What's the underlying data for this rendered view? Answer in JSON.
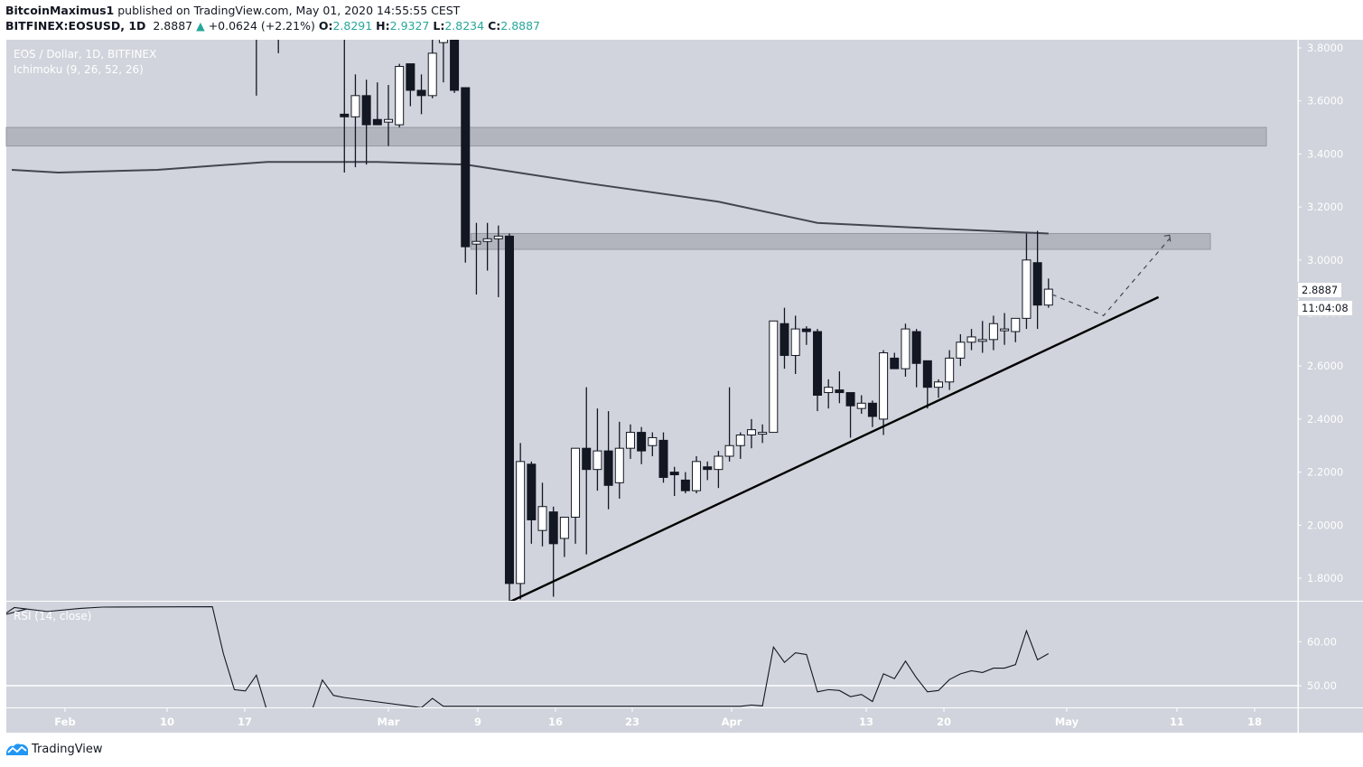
{
  "header": {
    "author": "BitcoinMaximus1",
    "published_text": "published on TradingView.com, May 01, 2020 14:55:55 CEST",
    "symbol": "BITFINEX:EOSUSD, 1D",
    "last": "2.8887",
    "change_arrow": "▲",
    "change": "+0.0624 (+2.21%)",
    "o_label": "O:",
    "o": "2.8291",
    "h_label": "H:",
    "h": "2.9327",
    "l_label": "L:",
    "l": "2.8234",
    "c_label": "C:",
    "c": "2.8887"
  },
  "legend": {
    "series_title": "EOS / Dollar, 1D, BITFINEX",
    "indicator": "Ichimoku (9, 26, 52, 26)",
    "rsi_title": "RSI (14, close)"
  },
  "price_tag": {
    "price": "2.8887",
    "countdown": "11:04:08"
  },
  "branding": {
    "name": "TradingView"
  },
  "colors": {
    "background": "#d1d4dc",
    "candle_up_body": "#ffffff",
    "candle_down_body": "#131722",
    "wick": "#131722",
    "zone_fill": "#b2b5be",
    "zone_border": "#9598a1",
    "ma_line": "#434651",
    "trendline": "#000000",
    "axis_text": "#ffffff",
    "positive": "#26a69a",
    "brand_blue": "#2196f3"
  },
  "chart_data": {
    "type": "candlestick",
    "title": "EOS / Dollar, 1D, BITFINEX",
    "xlabel": "",
    "ylabel": "",
    "ylim": [
      1.72,
      3.84
    ],
    "y_ticks": [
      "3.8000",
      "3.6000",
      "3.4000",
      "3.2000",
      "3.0000",
      "2.8000",
      "2.6000",
      "2.4000",
      "2.2000",
      "2.0000",
      "1.8000"
    ],
    "x_ticks": [
      "Feb",
      "10",
      "17",
      "Mar",
      "9",
      "16",
      "23",
      "Apr",
      "13",
      "20",
      "May",
      "11",
      "18"
    ],
    "grid": false,
    "candles_visible_from": "2020-02-28",
    "candles": [
      {
        "date": "2020-02-27",
        "o": 3.55,
        "h": 3.9,
        "l": 3.33,
        "c": 3.54
      },
      {
        "date": "2020-02-28",
        "o": 3.54,
        "h": 3.7,
        "l": 3.35,
        "c": 3.62
      },
      {
        "date": "2020-02-29",
        "o": 3.62,
        "h": 3.68,
        "l": 3.36,
        "c": 3.51
      },
      {
        "date": "2020-03-01",
        "o": 3.53,
        "h": 3.67,
        "l": 3.51,
        "c": 3.51
      },
      {
        "date": "2020-03-02",
        "o": 3.52,
        "h": 3.66,
        "l": 3.43,
        "c": 3.53
      },
      {
        "date": "2020-03-03",
        "o": 3.51,
        "h": 3.74,
        "l": 3.5,
        "c": 3.73
      },
      {
        "date": "2020-03-04",
        "o": 3.74,
        "h": 3.74,
        "l": 3.58,
        "c": 3.64
      },
      {
        "date": "2020-03-05",
        "o": 3.64,
        "h": 3.7,
        "l": 3.55,
        "c": 3.62
      },
      {
        "date": "2020-03-06",
        "o": 3.62,
        "h": 3.85,
        "l": 3.61,
        "c": 3.78
      },
      {
        "date": "2020-03-07",
        "o": 3.82,
        "h": 3.9,
        "l": 3.67,
        "c": 3.86
      },
      {
        "date": "2020-03-08",
        "o": 3.86,
        "h": 3.88,
        "l": 3.63,
        "c": 3.64
      },
      {
        "date": "2020-03-09",
        "o": 3.65,
        "h": 3.65,
        "l": 2.99,
        "c": 3.05
      },
      {
        "date": "2020-03-10",
        "o": 3.06,
        "h": 3.14,
        "l": 2.87,
        "c": 3.07
      },
      {
        "date": "2020-03-11",
        "o": 3.07,
        "h": 3.14,
        "l": 2.96,
        "c": 3.08
      },
      {
        "date": "2020-03-12",
        "o": 3.08,
        "h": 3.13,
        "l": 2.86,
        "c": 3.09
      },
      {
        "date": "2020-03-13",
        "o": 3.09,
        "h": 3.1,
        "l": 1.66,
        "c": 1.78
      },
      {
        "date": "2020-03-14",
        "o": 1.78,
        "h": 2.31,
        "l": 1.72,
        "c": 2.24
      },
      {
        "date": "2020-03-15",
        "o": 2.23,
        "h": 2.24,
        "l": 1.93,
        "c": 2.02
      },
      {
        "date": "2020-03-16",
        "o": 1.98,
        "h": 2.16,
        "l": 1.92,
        "c": 2.07
      },
      {
        "date": "2020-03-17",
        "o": 2.05,
        "h": 2.07,
        "l": 1.73,
        "c": 1.93
      },
      {
        "date": "2020-03-18",
        "o": 1.95,
        "h": 2.02,
        "l": 1.88,
        "c": 2.03
      },
      {
        "date": "2020-03-19",
        "o": 2.03,
        "h": 2.05,
        "l": 1.93,
        "c": 2.29
      },
      {
        "date": "2020-03-20",
        "o": 2.29,
        "h": 2.52,
        "l": 1.89,
        "c": 2.21
      },
      {
        "date": "2020-03-21",
        "o": 2.21,
        "h": 2.44,
        "l": 2.13,
        "c": 2.28
      },
      {
        "date": "2020-03-22",
        "o": 2.28,
        "h": 2.43,
        "l": 2.06,
        "c": 2.15
      },
      {
        "date": "2020-03-23",
        "o": 2.16,
        "h": 2.39,
        "l": 2.1,
        "c": 2.29
      },
      {
        "date": "2020-03-24",
        "o": 2.29,
        "h": 2.38,
        "l": 2.25,
        "c": 2.35
      },
      {
        "date": "2020-03-25",
        "o": 2.35,
        "h": 2.37,
        "l": 2.23,
        "c": 2.28
      },
      {
        "date": "2020-03-26",
        "o": 2.3,
        "h": 2.35,
        "l": 2.26,
        "c": 2.33
      },
      {
        "date": "2020-03-27",
        "o": 2.32,
        "h": 2.35,
        "l": 2.16,
        "c": 2.18
      },
      {
        "date": "2020-03-28",
        "o": 2.2,
        "h": 2.22,
        "l": 2.11,
        "c": 2.19
      },
      {
        "date": "2020-03-29",
        "o": 2.17,
        "h": 2.2,
        "l": 2.12,
        "c": 2.13
      },
      {
        "date": "2020-03-30",
        "o": 2.13,
        "h": 2.26,
        "l": 2.12,
        "c": 2.24
      },
      {
        "date": "2020-03-31",
        "o": 2.22,
        "h": 2.24,
        "l": 2.17,
        "c": 2.21
      },
      {
        "date": "2020-04-01",
        "o": 2.21,
        "h": 2.28,
        "l": 2.14,
        "c": 2.26
      },
      {
        "date": "2020-04-02",
        "o": 2.26,
        "h": 2.52,
        "l": 2.24,
        "c": 2.3
      },
      {
        "date": "2020-04-03",
        "o": 2.3,
        "h": 2.35,
        "l": 2.25,
        "c": 2.34
      },
      {
        "date": "2020-04-04",
        "o": 2.34,
        "h": 2.4,
        "l": 2.29,
        "c": 2.36
      },
      {
        "date": "2020-04-05",
        "o": 2.35,
        "h": 2.38,
        "l": 2.31,
        "c": 2.35
      },
      {
        "date": "2020-04-06",
        "o": 2.35,
        "h": 2.77,
        "l": 2.35,
        "c": 2.77
      },
      {
        "date": "2020-04-07",
        "o": 2.76,
        "h": 2.82,
        "l": 2.59,
        "c": 2.64
      },
      {
        "date": "2020-04-08",
        "o": 2.64,
        "h": 2.79,
        "l": 2.57,
        "c": 2.74
      },
      {
        "date": "2020-04-09",
        "o": 2.74,
        "h": 2.75,
        "l": 2.68,
        "c": 2.73
      },
      {
        "date": "2020-04-10",
        "o": 2.73,
        "h": 2.74,
        "l": 2.43,
        "c": 2.49
      },
      {
        "date": "2020-04-11",
        "o": 2.5,
        "h": 2.55,
        "l": 2.44,
        "c": 2.52
      },
      {
        "date": "2020-04-12",
        "o": 2.51,
        "h": 2.58,
        "l": 2.46,
        "c": 2.5
      },
      {
        "date": "2020-04-13",
        "o": 2.5,
        "h": 2.5,
        "l": 2.33,
        "c": 2.45
      },
      {
        "date": "2020-04-14",
        "o": 2.44,
        "h": 2.49,
        "l": 2.42,
        "c": 2.46
      },
      {
        "date": "2020-04-15",
        "o": 2.46,
        "h": 2.47,
        "l": 2.37,
        "c": 2.41
      },
      {
        "date": "2020-04-16",
        "o": 2.4,
        "h": 2.66,
        "l": 2.34,
        "c": 2.65
      },
      {
        "date": "2020-04-17",
        "o": 2.63,
        "h": 2.65,
        "l": 2.59,
        "c": 2.59
      },
      {
        "date": "2020-04-18",
        "o": 2.59,
        "h": 2.76,
        "l": 2.56,
        "c": 2.74
      },
      {
        "date": "2020-04-19",
        "o": 2.73,
        "h": 2.74,
        "l": 2.52,
        "c": 2.61
      },
      {
        "date": "2020-04-20",
        "o": 2.62,
        "h": 2.62,
        "l": 2.44,
        "c": 2.52
      },
      {
        "date": "2020-04-21",
        "o": 2.52,
        "h": 2.55,
        "l": 2.48,
        "c": 2.54
      },
      {
        "date": "2020-04-22",
        "o": 2.54,
        "h": 2.66,
        "l": 2.51,
        "c": 2.63
      },
      {
        "date": "2020-04-23",
        "o": 2.63,
        "h": 2.72,
        "l": 2.6,
        "c": 2.69
      },
      {
        "date": "2020-04-24",
        "o": 2.69,
        "h": 2.74,
        "l": 2.66,
        "c": 2.71
      },
      {
        "date": "2020-04-25",
        "o": 2.7,
        "h": 2.77,
        "l": 2.65,
        "c": 2.7
      },
      {
        "date": "2020-04-26",
        "o": 2.7,
        "h": 2.79,
        "l": 2.66,
        "c": 2.76
      },
      {
        "date": "2020-04-27",
        "o": 2.74,
        "h": 2.8,
        "l": 2.68,
        "c": 2.74
      },
      {
        "date": "2020-04-28",
        "o": 2.73,
        "h": 2.76,
        "l": 2.69,
        "c": 2.78
      },
      {
        "date": "2020-04-29",
        "o": 2.78,
        "h": 3.1,
        "l": 2.74,
        "c": 3.0
      },
      {
        "date": "2020-04-30",
        "o": 2.99,
        "h": 3.11,
        "l": 2.74,
        "c": 2.83
      },
      {
        "date": "2020-05-01",
        "o": 2.83,
        "h": 2.93,
        "l": 2.82,
        "c": 2.89
      }
    ],
    "early_candles_partial": [
      {
        "date": "2020-01-24",
        "o": 3.63,
        "h": 3.95,
        "l": 3.62,
        "c": 3.92
      },
      {
        "date": "2020-02-19",
        "o": 3.95,
        "h": 3.98,
        "l": 3.62,
        "c": 3.95
      },
      {
        "date": "2020-02-21",
        "o": 3.95,
        "h": 3.98,
        "l": 3.78,
        "c": 3.95
      }
    ],
    "overlays": {
      "resistance_zone_upper": [
        3.43,
        3.5
      ],
      "resistance_zone_lower": [
        3.04,
        3.1
      ],
      "moving_average_line": [
        {
          "date": "2020-01-24",
          "v": 3.34
        },
        {
          "date": "2020-02-01",
          "v": 3.33
        },
        {
          "date": "2020-02-10",
          "v": 3.34
        },
        {
          "date": "2020-02-20",
          "v": 3.37
        },
        {
          "date": "2020-03-01",
          "v": 3.37
        },
        {
          "date": "2020-03-09",
          "v": 3.36
        },
        {
          "date": "2020-03-20",
          "v": 3.29
        },
        {
          "date": "2020-04-01",
          "v": 3.22
        },
        {
          "date": "2020-04-10",
          "v": 3.14
        },
        {
          "date": "2020-04-20",
          "v": 3.12
        },
        {
          "date": "2020-05-01",
          "v": 3.1
        }
      ],
      "ascending_trendline": {
        "from": {
          "date": "2020-03-13",
          "v": 1.71
        },
        "to": {
          "date": "2020-05-11",
          "v": 2.86
        }
      },
      "projection_path_dashed": [
        {
          "date": "2020-05-01",
          "v": 2.87
        },
        {
          "date": "2020-05-06",
          "v": 2.79
        },
        {
          "date": "2020-05-12",
          "v": 3.08
        }
      ]
    },
    "rsi": {
      "title": "RSI (14, close)",
      "ticks": [
        "60.00",
        "50.00"
      ],
      "hline": 50,
      "ylim": [
        45,
        66
      ],
      "points": [
        {
          "date": "2020-01-24",
          "v": 67.5
        },
        {
          "date": "2020-01-27",
          "v": 66.1
        },
        {
          "date": "2020-01-28",
          "v": 67.8
        },
        {
          "date": "2020-01-31",
          "v": 66.9
        },
        {
          "date": "2020-02-03",
          "v": 67.6
        },
        {
          "date": "2020-02-05",
          "v": 67.9
        },
        {
          "date": "2020-02-15",
          "v": 68
        },
        {
          "date": "2020-02-16",
          "v": 57.3
        },
        {
          "date": "2020-02-17",
          "v": 49.1
        },
        {
          "date": "2020-02-18",
          "v": 48.8
        },
        {
          "date": "2020-02-19",
          "v": 52.4
        },
        {
          "date": "2020-02-20",
          "v": 44
        },
        {
          "date": "2020-02-24",
          "v": 44
        },
        {
          "date": "2020-02-25",
          "v": 51.3
        },
        {
          "date": "2020-02-26",
          "v": 47.8
        },
        {
          "date": "2020-02-27",
          "v": 47.3
        },
        {
          "date": "2020-03-05",
          "v": 45
        },
        {
          "date": "2020-03-06",
          "v": 47.1
        },
        {
          "date": "2020-03-07",
          "v": 45.3
        },
        {
          "date": "2020-04-03",
          "v": 45.3
        },
        {
          "date": "2020-04-04",
          "v": 45.6
        },
        {
          "date": "2020-04-05",
          "v": 45.4
        },
        {
          "date": "2020-04-06",
          "v": 58.8
        },
        {
          "date": "2020-04-07",
          "v": 55.3
        },
        {
          "date": "2020-04-08",
          "v": 57.5
        },
        {
          "date": "2020-04-09",
          "v": 57.1
        },
        {
          "date": "2020-04-10",
          "v": 48.6
        },
        {
          "date": "2020-04-11",
          "v": 49.1
        },
        {
          "date": "2020-04-12",
          "v": 48.9
        },
        {
          "date": "2020-04-13",
          "v": 47.5
        },
        {
          "date": "2020-04-14",
          "v": 48.0
        },
        {
          "date": "2020-04-15",
          "v": 46.4
        },
        {
          "date": "2020-04-16",
          "v": 52.7
        },
        {
          "date": "2020-04-17",
          "v": 51.6
        },
        {
          "date": "2020-04-18",
          "v": 55.6
        },
        {
          "date": "2020-04-19",
          "v": 51.8
        },
        {
          "date": "2020-04-20",
          "v": 48.6
        },
        {
          "date": "2020-04-21",
          "v": 48.9
        },
        {
          "date": "2020-04-22",
          "v": 51.4
        },
        {
          "date": "2020-04-23",
          "v": 52.7
        },
        {
          "date": "2020-04-24",
          "v": 53.4
        },
        {
          "date": "2020-04-25",
          "v": 53.0
        },
        {
          "date": "2020-04-26",
          "v": 54.0
        },
        {
          "date": "2020-04-27",
          "v": 54.0
        },
        {
          "date": "2020-04-28",
          "v": 54.8
        },
        {
          "date": "2020-04-29",
          "v": 62.5
        },
        {
          "date": "2020-04-30",
          "v": 55.9
        },
        {
          "date": "2020-05-01",
          "v": 57.3
        }
      ]
    }
  }
}
